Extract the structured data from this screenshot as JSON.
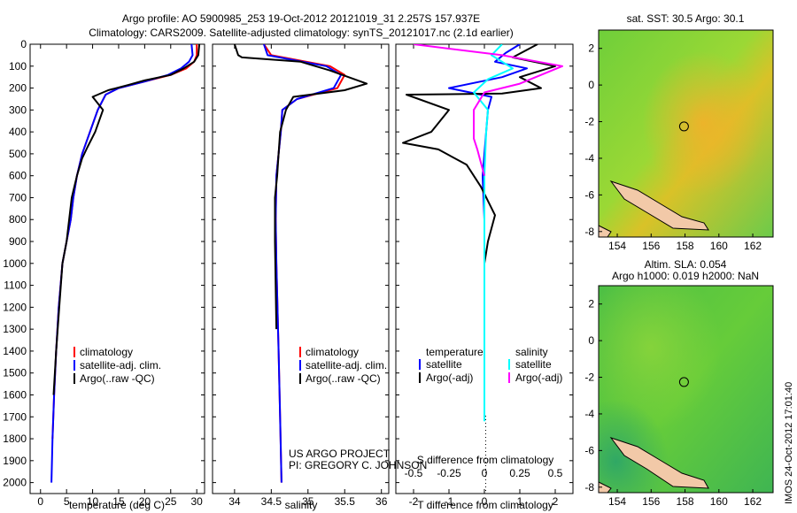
{
  "title_line1": "Argo profile: AO 5900985_253 19-Oct-2012 20121019_31 2.257S 157.937E",
  "title_line2": "Climatology: CARS2009. Satellite-adjusted climatology: synTS_20121017.nc (2.1d earlier)",
  "side_stamp": "IMOS 24-Oct-2012 17:01:40",
  "project_line1": "US ARGO PROJECT",
  "project_line2": "PI: GREGORY C. JOHNSON",
  "colors": {
    "climatology": "#ff0000",
    "satellite": "#0000ff",
    "argo": "#000000",
    "salinity_sat": "#00ffff",
    "salinity_argo": "#ff00ff"
  },
  "chart_data": [
    {
      "type": "line",
      "panel": "temperature",
      "xlabel": "temperature (deg C)",
      "ylabel": "",
      "xlim": [
        -2,
        31.5
      ],
      "ylim": [
        2050,
        0
      ],
      "y_inverted": true,
      "xticks": [
        0,
        5,
        10,
        15,
        20,
        25,
        30
      ],
      "yticks": [
        0,
        100,
        200,
        300,
        400,
        500,
        600,
        700,
        800,
        900,
        1000,
        1100,
        1200,
        1300,
        1400,
        1500,
        1600,
        1700,
        1800,
        1900,
        2000
      ],
      "legend": [
        "climatology",
        "satellite-adj. clim.",
        "Argo(..raw -QC)"
      ],
      "legend_position": "lower-middle",
      "series": [
        {
          "name": "climatology",
          "color": "#ff0000",
          "x": [
            30.0,
            30.0,
            29.5,
            28.0,
            25.0,
            20.0,
            15.0,
            12.5,
            11.0,
            9.5,
            8.0,
            7.0,
            6.3,
            5.8,
            5.0,
            4.2,
            3.5,
            3.0,
            2.6,
            2.3
          ],
          "y": [
            0,
            50,
            80,
            110,
            140,
            170,
            200,
            230,
            300,
            400,
            500,
            600,
            700,
            800,
            900,
            1000,
            1200,
            1400,
            1600,
            1800
          ]
        },
        {
          "name": "satellite-adj. clim.",
          "color": "#0000ff",
          "x": [
            29.0,
            29.2,
            28.5,
            27.0,
            24.5,
            20.0,
            15.0,
            12.5,
            11.0,
            9.5,
            8.0,
            7.0,
            6.3,
            5.8,
            5.0,
            4.2,
            3.5,
            3.0,
            2.6,
            2.3,
            2.1
          ],
          "y": [
            0,
            50,
            80,
            110,
            140,
            170,
            200,
            230,
            300,
            400,
            500,
            600,
            700,
            800,
            900,
            1000,
            1200,
            1400,
            1600,
            1800,
            2000
          ]
        },
        {
          "name": "Argo(..raw -QC)",
          "color": "#000000",
          "x": [
            30.5,
            30.3,
            29.5,
            27.5,
            25.0,
            20.0,
            17.0,
            13.0,
            10.0,
            12.0,
            10.5,
            9.0,
            8.0,
            7.0,
            6.0,
            5.5,
            5.0,
            4.2,
            3.6,
            3.0,
            2.5
          ],
          "y": [
            0,
            50,
            80,
            110,
            140,
            165,
            185,
            210,
            240,
            300,
            400,
            470,
            520,
            600,
            700,
            800,
            900,
            1000,
            1200,
            1400,
            1600
          ]
        }
      ]
    },
    {
      "type": "line",
      "panel": "salinity",
      "xlabel": "salinity",
      "ylabel": "",
      "xlim": [
        33.7,
        36.1
      ],
      "ylim": [
        2050,
        0
      ],
      "y_inverted": true,
      "xticks": [
        34,
        34.5,
        35,
        35.5,
        36
      ],
      "legend": [
        "climatology",
        "satellite-adj. clim.",
        "Argo(..raw -QC)"
      ],
      "legend_position": "lower-middle",
      "series": [
        {
          "name": "climatology",
          "color": "#ff0000",
          "x": [
            34.4,
            34.5,
            34.9,
            35.3,
            35.5,
            35.4,
            34.85,
            34.65,
            34.63,
            34.6,
            34.57,
            34.56,
            34.57,
            34.6,
            34.62,
            34.64
          ],
          "y": [
            0,
            50,
            75,
            100,
            140,
            200,
            250,
            300,
            400,
            500,
            600,
            800,
            1000,
            1400,
            1700,
            2000
          ]
        },
        {
          "name": "satellite-adj. clim.",
          "color": "#0000ff",
          "x": [
            34.4,
            34.45,
            34.85,
            35.25,
            35.45,
            35.35,
            34.85,
            34.65,
            34.63,
            34.6,
            34.57,
            34.56,
            34.57,
            34.6,
            34.62,
            34.64
          ],
          "y": [
            0,
            50,
            75,
            100,
            140,
            200,
            250,
            300,
            400,
            500,
            600,
            800,
            1000,
            1400,
            1700,
            2000
          ]
        },
        {
          "name": "Argo(..raw -QC)",
          "color": "#000000",
          "x": [
            34.0,
            34.05,
            34.1,
            34.9,
            35.3,
            35.8,
            35.5,
            34.8,
            34.7,
            34.62,
            34.6,
            34.58,
            34.55,
            34.55,
            34.56,
            34.57
          ],
          "y": [
            0,
            50,
            60,
            80,
            120,
            180,
            210,
            240,
            300,
            400,
            500,
            600,
            700,
            900,
            1100,
            1300
          ]
        }
      ]
    },
    {
      "type": "line",
      "panel": "difference",
      "xlabel": "T difference from climatology",
      "xlabel_top": "S difference from climatology",
      "xlim": [
        -2.5,
        2.5
      ],
      "ylim": [
        2050,
        0
      ],
      "y_inverted": true,
      "xticks_T": [
        -2,
        -1,
        0,
        1,
        2
      ],
      "xticks_S": [
        "-0.5",
        "-0.25",
        "0",
        "0.25",
        "0.5"
      ],
      "legend_temperature_header": "temperature",
      "legend_salinity_header": "salinity",
      "legend": [
        "satellite",
        "Argo(-adj)",
        "satellite",
        "Argo(-adj)"
      ],
      "legend_position": "lower-middle",
      "series": [
        {
          "name": "satellite",
          "group": "temperature",
          "color": "#0000ff",
          "x": [
            1.0,
            0.6,
            0.3,
            1.2,
            0.5,
            -1.0,
            0.2,
            0.1,
            0.05,
            0.0,
            -0.05,
            0.0,
            0.0,
            0.0,
            0.0
          ],
          "y": [
            0,
            40,
            80,
            110,
            150,
            200,
            240,
            300,
            400,
            500,
            600,
            800,
            1000,
            1200,
            1300
          ]
        },
        {
          "name": "Argo(-adj)",
          "group": "temperature",
          "color": "#000000",
          "x": [
            1.5,
            0.8,
            2.0,
            1.0,
            1.6,
            0.5,
            -2.2,
            -1.0,
            -1.5,
            -2.3,
            -1.3,
            -0.5,
            -0.1,
            0.3,
            0.1,
            0.0
          ],
          "y": [
            0,
            60,
            100,
            150,
            200,
            225,
            230,
            300,
            400,
            450,
            480,
            550,
            650,
            780,
            900,
            1000
          ]
        },
        {
          "name": "satellite",
          "group": "salinity",
          "color": "#00ffff",
          "x": [
            0.5,
            0.2,
            0.8,
            0.1,
            -0.3,
            0.1,
            0.05,
            0.0,
            0.0,
            0.0,
            0.0
          ],
          "y": [
            0,
            50,
            110,
            160,
            220,
            300,
            400,
            600,
            1000,
            1500,
            1720
          ]
        },
        {
          "name": "Argo(-adj)",
          "group": "salinity",
          "color": "#ff00ff",
          "x": [
            -2.0,
            0.5,
            2.2,
            1.0,
            0.0,
            -0.3,
            -0.3,
            -0.2,
            0.0
          ],
          "y": [
            0,
            50,
            100,
            180,
            220,
            300,
            430,
            480,
            600
          ]
        }
      ]
    }
  ],
  "maps": {
    "sst": {
      "title": "sat. SST: 30.5 Argo: 30.1",
      "xticks": [
        154,
        156,
        158,
        160,
        162
      ],
      "yticks": [
        2,
        0,
        -2,
        -4,
        -6,
        -8
      ],
      "xlim": [
        152.9,
        163.2
      ],
      "ylim": [
        -8.3,
        3.0
      ],
      "argo_marker": {
        "lon": 157.94,
        "lat": -2.26
      }
    },
    "sla": {
      "title_line1": "Altim. SLA: 0.054",
      "title_line2": "Argo h1000: 0.019 h2000: NaN",
      "xticks": [
        154,
        156,
        158,
        160,
        162
      ],
      "yticks": [
        2,
        0,
        -2,
        -4,
        -6,
        -8
      ],
      "xlim": [
        152.9,
        163.2
      ],
      "ylim": [
        -8.3,
        3.0
      ],
      "argo_marker": {
        "lon": 157.94,
        "lat": -2.26
      }
    }
  }
}
